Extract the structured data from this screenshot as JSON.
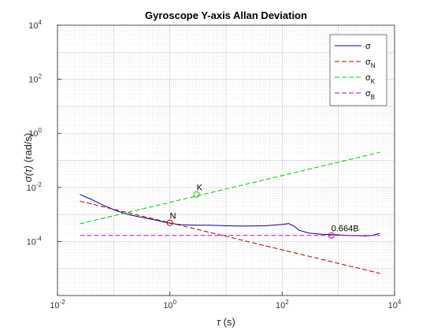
{
  "chart_data": {
    "type": "line",
    "title": "Gyroscope Y-axis Allan Deviation",
    "xlabel": {
      "symbol": "τ",
      "text": " (s)"
    },
    "ylabel": {
      "symbol": "σ(τ)",
      "text": " (rad/s)"
    },
    "xscale": "log",
    "yscale": "log",
    "xlim": [
      0.01,
      10000
    ],
    "ylim": [
      1e-06,
      10000
    ],
    "grid": true,
    "minor_grid": true,
    "legend_placement": "top-right",
    "xticks": [
      {
        "value": 0.01,
        "base": "10",
        "exp": "-2"
      },
      {
        "value": 1,
        "base": "10",
        "exp": "0"
      },
      {
        "value": 100,
        "base": "10",
        "exp": "2"
      },
      {
        "value": 10000,
        "base": "10",
        "exp": "4"
      }
    ],
    "yticks": [
      {
        "value": 0.0001,
        "base": "10",
        "exp": "-4"
      },
      {
        "value": 0.01,
        "base": "10",
        "exp": "-2"
      },
      {
        "value": 1,
        "base": "10",
        "exp": "0"
      },
      {
        "value": 100,
        "base": "10",
        "exp": "2"
      },
      {
        "value": 10000,
        "base": "10",
        "exp": "4"
      }
    ],
    "series": [
      {
        "name": "σ",
        "sub": "",
        "color": "#0000a0",
        "dash": "",
        "x": [
          0.025,
          0.04,
          0.06,
          0.1,
          0.15,
          0.2,
          0.3,
          0.5,
          0.8,
          1,
          1.5,
          2,
          3,
          5,
          10,
          20,
          50,
          100,
          130,
          160,
          200,
          300,
          500,
          800,
          1000,
          1500,
          2000,
          3000,
          4000,
          5500
        ],
        "y": [
          0.0055,
          0.0036,
          0.0024,
          0.0015,
          0.00112,
          0.00095,
          0.0008,
          0.00065,
          0.00052,
          0.00047,
          0.00042,
          0.00041,
          0.0004,
          0.0004,
          0.00038,
          0.00037,
          0.00038,
          0.00043,
          0.00046,
          0.00038,
          0.00026,
          0.000205,
          0.000185,
          0.000178,
          0.000176,
          0.000168,
          0.000165,
          0.00016,
          0.000168,
          0.0002
        ]
      },
      {
        "name": "σ",
        "sub": "N",
        "color": "#b00000",
        "dash": "6,3",
        "x": [
          0.025,
          5500
        ],
        "y": [
          0.0031,
          6.6e-06
        ]
      },
      {
        "name": "σ",
        "sub": "K",
        "color": "#00cc00",
        "dash": "6,3",
        "x": [
          0.025,
          5500
        ],
        "y": [
          0.00045,
          0.2
        ]
      },
      {
        "name": "σ",
        "sub": "B",
        "color": "#cc00cc",
        "dash": "6,3",
        "x": [
          0.025,
          5500
        ],
        "y": [
          0.000168,
          0.000168
        ]
      }
    ],
    "markers": [
      {
        "label": "N",
        "x": 1,
        "y": 0.00049,
        "color": "#b00000"
      },
      {
        "label": "K",
        "x": 3,
        "y": 0.0055,
        "color": "#00cc00"
      },
      {
        "label": "0.664B",
        "x": 750,
        "y": 0.000168,
        "color": "#cc00cc"
      }
    ]
  }
}
